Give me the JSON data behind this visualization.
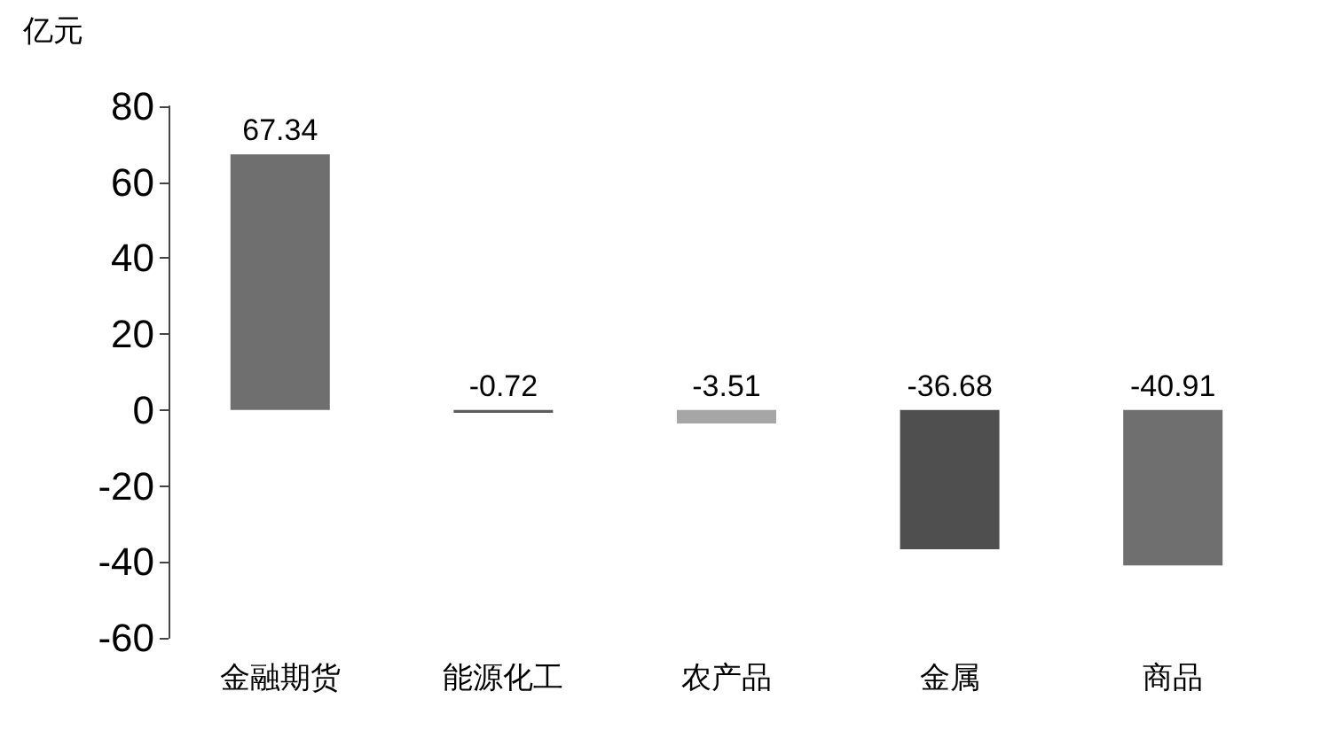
{
  "chart_data": {
    "type": "bar",
    "ylabel": "亿元",
    "categories": [
      "金融期货",
      "能源化工",
      "农产品",
      "金属",
      "商品"
    ],
    "values": [
      67.34,
      -0.72,
      -3.51,
      -36.68,
      -40.91
    ],
    "colors": [
      "#6f6f6f",
      "#5c5c5c",
      "#a6a6a6",
      "#4f4f4f",
      "#6f6f6f"
    ],
    "ylim": [
      -60,
      80
    ],
    "yticks": [
      -60,
      -40,
      -20,
      0,
      20,
      40,
      60,
      80
    ],
    "data_labels": true
  }
}
